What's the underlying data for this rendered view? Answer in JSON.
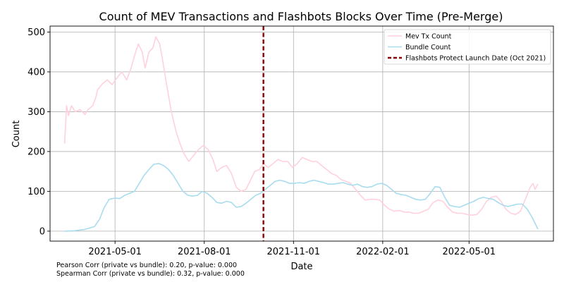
{
  "chart_data": {
    "type": "line",
    "title": "Count of MEV Transactions and Flashbots Blocks Over Time (Pre-Merge)",
    "xlabel": "Date",
    "ylabel": "Count",
    "xlim": [
      "2021-02-23",
      "2022-07-27"
    ],
    "ylim": [
      -25,
      515
    ],
    "x_ticks": [
      "2021-05-01",
      "2021-08-01",
      "2021-11-01",
      "2022-02-01",
      "2022-05-01"
    ],
    "y_ticks": [
      0,
      100,
      200,
      300,
      400,
      500
    ],
    "grid": true,
    "legend_position": "top-right",
    "series": [
      {
        "name": "Mev Tx Count",
        "color": "#ffd1dc",
        "style": "solid",
        "points": [
          [
            "2021-03-10",
            220
          ],
          [
            "2021-03-11",
            265
          ],
          [
            "2021-03-12",
            315
          ],
          [
            "2021-03-14",
            290
          ],
          [
            "2021-03-17",
            315
          ],
          [
            "2021-03-21",
            300
          ],
          [
            "2021-03-26",
            305
          ],
          [
            "2021-03-31",
            293
          ],
          [
            "2021-04-03",
            305
          ],
          [
            "2021-04-08",
            315
          ],
          [
            "2021-04-11",
            335
          ],
          [
            "2021-04-13",
            355
          ],
          [
            "2021-04-18",
            370
          ],
          [
            "2021-04-23",
            380
          ],
          [
            "2021-04-28",
            368
          ],
          [
            "2021-05-03",
            385
          ],
          [
            "2021-05-08",
            400
          ],
          [
            "2021-05-13",
            380
          ],
          [
            "2021-05-17",
            405
          ],
          [
            "2021-05-21",
            440
          ],
          [
            "2021-05-25",
            470
          ],
          [
            "2021-05-29",
            450
          ],
          [
            "2021-06-01",
            410
          ],
          [
            "2021-06-05",
            450
          ],
          [
            "2021-06-09",
            460
          ],
          [
            "2021-06-12",
            488
          ],
          [
            "2021-06-16",
            470
          ],
          [
            "2021-06-19",
            430
          ],
          [
            "2021-06-23",
            370
          ],
          [
            "2021-06-28",
            300
          ],
          [
            "2021-07-03",
            250
          ],
          [
            "2021-07-07",
            220
          ],
          [
            "2021-07-11",
            195
          ],
          [
            "2021-07-16",
            175
          ],
          [
            "2021-07-21",
            190
          ],
          [
            "2021-07-26",
            205
          ],
          [
            "2021-07-31",
            215
          ],
          [
            "2021-08-05",
            205
          ],
          [
            "2021-08-10",
            180
          ],
          [
            "2021-08-14",
            150
          ],
          [
            "2021-08-19",
            160
          ],
          [
            "2021-08-24",
            165
          ],
          [
            "2021-08-29",
            145
          ],
          [
            "2021-09-03",
            110
          ],
          [
            "2021-09-08",
            100
          ],
          [
            "2021-09-13",
            105
          ],
          [
            "2021-09-18",
            130
          ],
          [
            "2021-09-22",
            150
          ],
          [
            "2021-09-27",
            155
          ],
          [
            "2021-10-01",
            170
          ],
          [
            "2021-10-06",
            160
          ],
          [
            "2021-10-11",
            170
          ],
          [
            "2021-10-16",
            180
          ],
          [
            "2021-10-21",
            175
          ],
          [
            "2021-10-26",
            175
          ],
          [
            "2021-10-31",
            160
          ],
          [
            "2021-11-05",
            170
          ],
          [
            "2021-11-10",
            185
          ],
          [
            "2021-11-15",
            180
          ],
          [
            "2021-11-20",
            175
          ],
          [
            "2021-11-25",
            175
          ],
          [
            "2021-11-30",
            165
          ],
          [
            "2021-12-05",
            155
          ],
          [
            "2021-12-10",
            145
          ],
          [
            "2021-12-15",
            140
          ],
          [
            "2021-12-20",
            130
          ],
          [
            "2021-12-25",
            125
          ],
          [
            "2021-12-30",
            120
          ],
          [
            "2022-01-04",
            105
          ],
          [
            "2022-01-09",
            90
          ],
          [
            "2022-01-14",
            78
          ],
          [
            "2022-01-19",
            80
          ],
          [
            "2022-01-24",
            80
          ],
          [
            "2022-01-29",
            78
          ],
          [
            "2022-02-03",
            65
          ],
          [
            "2022-02-08",
            55
          ],
          [
            "2022-02-13",
            50
          ],
          [
            "2022-02-18",
            52
          ],
          [
            "2022-02-23",
            48
          ],
          [
            "2022-02-28",
            48
          ],
          [
            "2022-03-05",
            45
          ],
          [
            "2022-03-10",
            45
          ],
          [
            "2022-03-15",
            50
          ],
          [
            "2022-03-20",
            55
          ],
          [
            "2022-03-25",
            72
          ],
          [
            "2022-03-30",
            78
          ],
          [
            "2022-04-04",
            75
          ],
          [
            "2022-04-09",
            60
          ],
          [
            "2022-04-14",
            48
          ],
          [
            "2022-04-19",
            45
          ],
          [
            "2022-04-24",
            45
          ],
          [
            "2022-04-29",
            42
          ],
          [
            "2022-05-04",
            40
          ],
          [
            "2022-05-09",
            42
          ],
          [
            "2022-05-14",
            55
          ],
          [
            "2022-05-19",
            75
          ],
          [
            "2022-05-24",
            85
          ],
          [
            "2022-05-29",
            88
          ],
          [
            "2022-06-03",
            75
          ],
          [
            "2022-06-08",
            55
          ],
          [
            "2022-06-13",
            45
          ],
          [
            "2022-06-18",
            42
          ],
          [
            "2022-06-23",
            50
          ],
          [
            "2022-06-28",
            80
          ],
          [
            "2022-07-03",
            110
          ],
          [
            "2022-07-06",
            120
          ],
          [
            "2022-07-08",
            105
          ],
          [
            "2022-07-11",
            118
          ]
        ]
      },
      {
        "name": "Bundle Count",
        "color": "#a8dcef",
        "style": "solid",
        "points": [
          [
            "2021-03-10",
            0
          ],
          [
            "2021-03-20",
            1
          ],
          [
            "2021-03-30",
            4
          ],
          [
            "2021-04-05",
            8
          ],
          [
            "2021-04-10",
            12
          ],
          [
            "2021-04-15",
            30
          ],
          [
            "2021-04-20",
            60
          ],
          [
            "2021-04-25",
            80
          ],
          [
            "2021-05-01",
            83
          ],
          [
            "2021-05-06",
            82
          ],
          [
            "2021-05-11",
            90
          ],
          [
            "2021-05-16",
            95
          ],
          [
            "2021-05-21",
            100
          ],
          [
            "2021-05-26",
            120
          ],
          [
            "2021-05-31",
            140
          ],
          [
            "2021-06-05",
            155
          ],
          [
            "2021-06-10",
            168
          ],
          [
            "2021-06-15",
            170
          ],
          [
            "2021-06-20",
            165
          ],
          [
            "2021-06-25",
            155
          ],
          [
            "2021-06-30",
            140
          ],
          [
            "2021-07-05",
            120
          ],
          [
            "2021-07-10",
            100
          ],
          [
            "2021-07-15",
            90
          ],
          [
            "2021-07-20",
            88
          ],
          [
            "2021-07-25",
            90
          ],
          [
            "2021-07-30",
            100
          ],
          [
            "2021-08-04",
            95
          ],
          [
            "2021-08-09",
            85
          ],
          [
            "2021-08-14",
            72
          ],
          [
            "2021-08-19",
            70
          ],
          [
            "2021-08-24",
            75
          ],
          [
            "2021-08-29",
            72
          ],
          [
            "2021-09-03",
            60
          ],
          [
            "2021-09-08",
            62
          ],
          [
            "2021-09-13",
            70
          ],
          [
            "2021-09-18",
            80
          ],
          [
            "2021-09-23",
            90
          ],
          [
            "2021-09-28",
            95
          ],
          [
            "2021-10-03",
            105
          ],
          [
            "2021-10-08",
            115
          ],
          [
            "2021-10-13",
            125
          ],
          [
            "2021-10-18",
            128
          ],
          [
            "2021-10-23",
            125
          ],
          [
            "2021-10-28",
            120
          ],
          [
            "2021-11-02",
            120
          ],
          [
            "2021-11-07",
            122
          ],
          [
            "2021-11-12",
            120
          ],
          [
            "2021-11-17",
            125
          ],
          [
            "2021-11-22",
            128
          ],
          [
            "2021-11-27",
            125
          ],
          [
            "2021-12-02",
            122
          ],
          [
            "2021-12-07",
            118
          ],
          [
            "2021-12-12",
            118
          ],
          [
            "2021-12-17",
            120
          ],
          [
            "2021-12-22",
            122
          ],
          [
            "2021-12-27",
            118
          ],
          [
            "2022-01-01",
            115
          ],
          [
            "2022-01-06",
            118
          ],
          [
            "2022-01-11",
            112
          ],
          [
            "2022-01-16",
            110
          ],
          [
            "2022-01-21",
            112
          ],
          [
            "2022-01-26",
            118
          ],
          [
            "2022-01-31",
            120
          ],
          [
            "2022-02-05",
            115
          ],
          [
            "2022-02-10",
            105
          ],
          [
            "2022-02-15",
            95
          ],
          [
            "2022-02-20",
            92
          ],
          [
            "2022-02-25",
            90
          ],
          [
            "2022-03-02",
            85
          ],
          [
            "2022-03-07",
            80
          ],
          [
            "2022-03-12",
            78
          ],
          [
            "2022-03-17",
            80
          ],
          [
            "2022-03-22",
            95
          ],
          [
            "2022-03-27",
            112
          ],
          [
            "2022-04-01",
            110
          ],
          [
            "2022-04-06",
            85
          ],
          [
            "2022-04-11",
            65
          ],
          [
            "2022-04-16",
            62
          ],
          [
            "2022-04-21",
            60
          ],
          [
            "2022-04-26",
            65
          ],
          [
            "2022-05-01",
            70
          ],
          [
            "2022-05-06",
            75
          ],
          [
            "2022-05-11",
            82
          ],
          [
            "2022-05-16",
            85
          ],
          [
            "2022-05-21",
            82
          ],
          [
            "2022-05-26",
            80
          ],
          [
            "2022-05-31",
            72
          ],
          [
            "2022-06-05",
            65
          ],
          [
            "2022-06-10",
            62
          ],
          [
            "2022-06-15",
            65
          ],
          [
            "2022-06-20",
            68
          ],
          [
            "2022-06-25",
            68
          ],
          [
            "2022-06-30",
            55
          ],
          [
            "2022-07-05",
            35
          ],
          [
            "2022-07-11",
            5
          ]
        ]
      },
      {
        "name": "Flashbots Protect Launch Date (Oct 2021)",
        "color": "#8b0000",
        "style": "dashed",
        "vline": "2021-10-01"
      }
    ]
  },
  "annotations": {
    "pearson": "Pearson Corr (private vs bundle): 0.20, p-value: 0.000",
    "spearman": "Spearman Corr (private vs bundle): 0.32, p-value: 0.000"
  }
}
